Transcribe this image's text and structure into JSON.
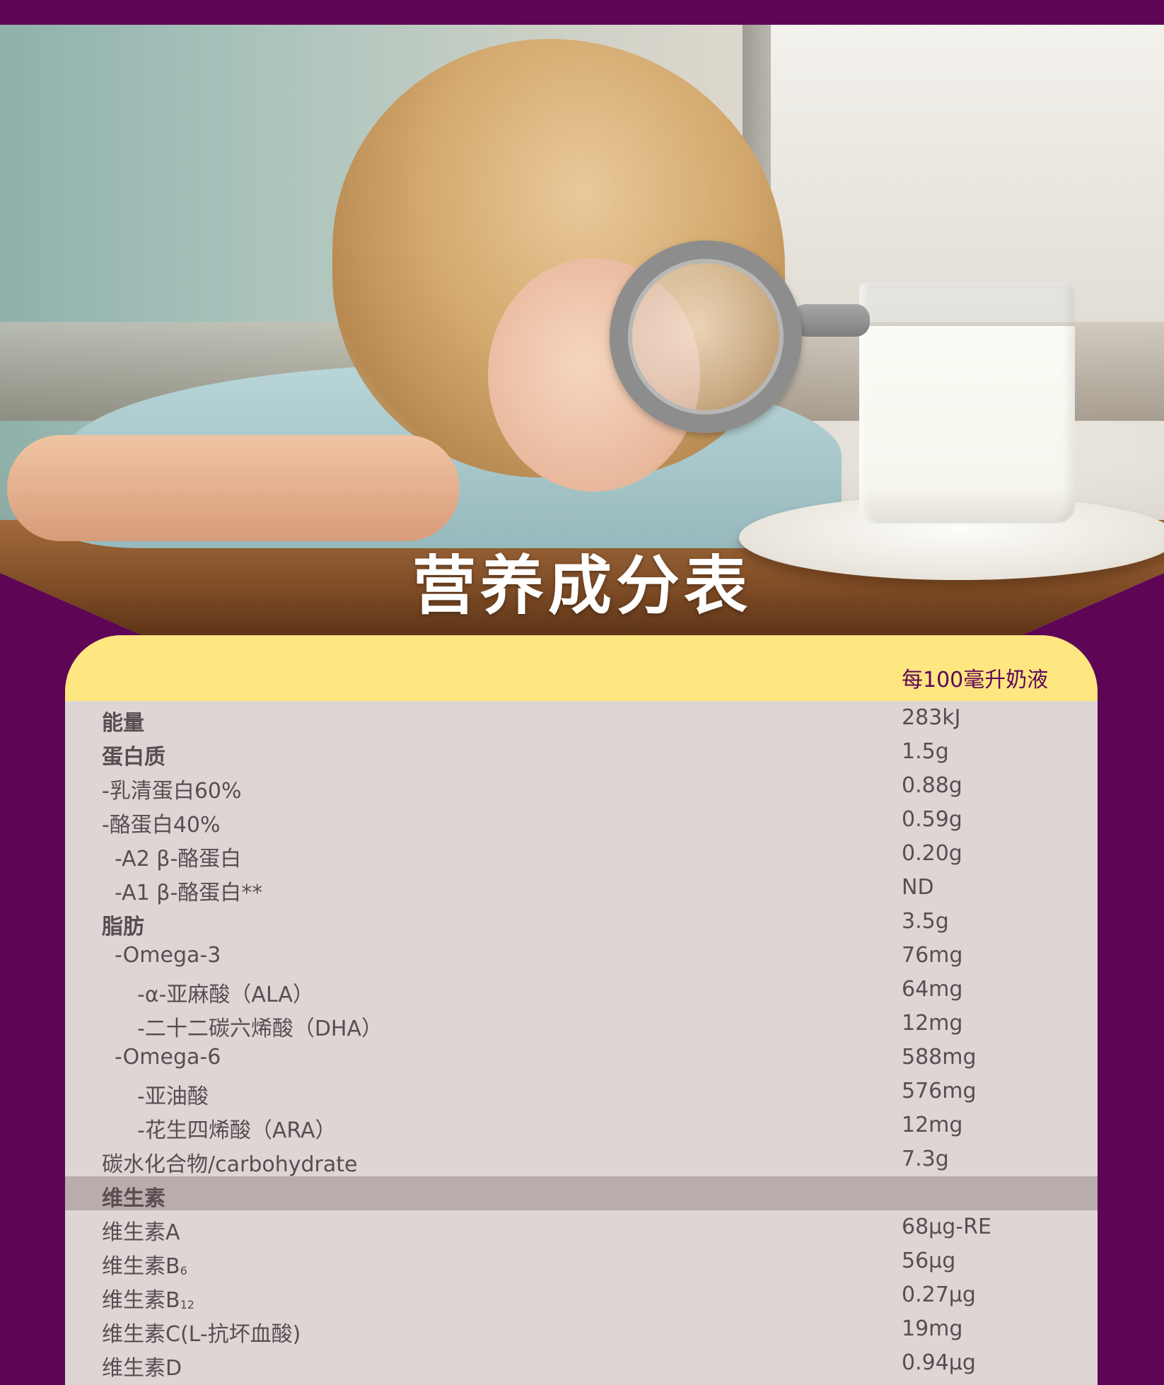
{
  "hero": {
    "title": "营养成分表"
  },
  "table": {
    "column_header": "每100毫升奶液",
    "rows": [
      {
        "label": "能量",
        "value": "283kJ"
      },
      {
        "label": "蛋白质",
        "value": "1.5g"
      },
      {
        "label": "-乳清蛋白60%",
        "value": "0.88g"
      },
      {
        "label": "-酪蛋白40%",
        "value": "0.59g"
      },
      {
        "label": "-A2 β-酪蛋白",
        "value": "0.20g"
      },
      {
        "label": "-A1 β-酪蛋白**",
        "value": "ND"
      },
      {
        "label": "脂肪",
        "value": "3.5g"
      },
      {
        "label": "-Omega-3",
        "value": "76mg"
      },
      {
        "label": "-α-亚麻酸（ALA）",
        "value": "64mg"
      },
      {
        "label": "-二十二碳六烯酸（DHA）",
        "value": "12mg"
      },
      {
        "label": "-Omega-6",
        "value": "588mg"
      },
      {
        "label": "-亚油酸",
        "value": "576mg"
      },
      {
        "label": "-花生四烯酸（ARA）",
        "value": "12mg"
      },
      {
        "label": "碳水化合物/carbohydrate",
        "value": "7.3g"
      }
    ],
    "section_vitamins": "维生素",
    "vitamin_rows": [
      {
        "label": "维生素A",
        "value": "68μg-RE"
      },
      {
        "label": "维生素B",
        "sub": "6",
        "value": "56μg"
      },
      {
        "label": "维生素B",
        "sub": "12",
        "value": "0.27μg"
      },
      {
        "label": "维生素C(L-抗坏血酸)",
        "value": "19mg"
      },
      {
        "label": "维生素D",
        "value": "0.94μg"
      }
    ]
  },
  "colors": {
    "background": "#5e0556",
    "header_band": "#fee680",
    "card": "#ddd6d5",
    "section_band": "#b8adac",
    "text": "#5a4d52"
  },
  "icons": {
    "photo": "child-with-magnifier-and-milk-photo"
  }
}
